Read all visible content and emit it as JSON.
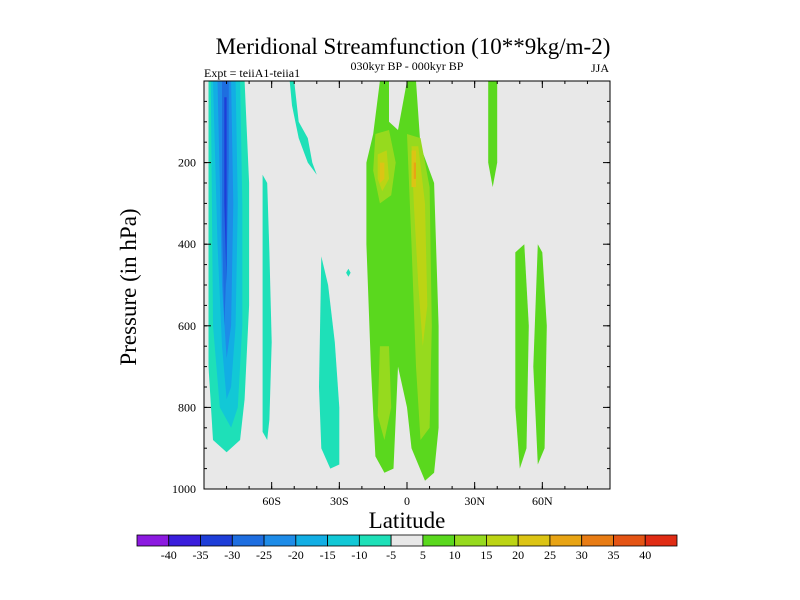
{
  "chart_data": {
    "type": "contour",
    "title": "Meridional Streamfunction (10**9kg/m-2)",
    "left_string": "Expt = teiiA1-teiia1",
    "center_string": "030kyr BP - 000kyr BP",
    "right_string": "JJA",
    "xlabel": "Latitude",
    "ylabel": "Pressure (in hPa)",
    "xlim": [
      -90,
      90
    ],
    "ylim": [
      1000,
      0
    ],
    "xticks": [
      {
        "value": -60,
        "label": "60S"
      },
      {
        "value": -30,
        "label": "30S"
      },
      {
        "value": 0,
        "label": "0"
      },
      {
        "value": 30,
        "label": "30N"
      },
      {
        "value": 60,
        "label": "60N"
      }
    ],
    "yticks": [
      {
        "value": 200,
        "label": "200"
      },
      {
        "value": 400,
        "label": "400"
      },
      {
        "value": 600,
        "label": "600"
      },
      {
        "value": 800,
        "label": "800"
      },
      {
        "value": 1000,
        "label": "1000"
      }
    ],
    "background_color": "#e8e8e8",
    "levels": [
      {
        "value": -40,
        "label": "-40",
        "color": "#8c1ae0"
      },
      {
        "value": -35,
        "label": "-35",
        "color": "#3a1edc"
      },
      {
        "value": -30,
        "label": "-30",
        "color": "#1e3ed8"
      },
      {
        "value": -25,
        "label": "-25",
        "color": "#1e6ee0"
      },
      {
        "value": -20,
        "label": "-20",
        "color": "#1e8ce8"
      },
      {
        "value": -15,
        "label": "-15",
        "color": "#12aee4"
      },
      {
        "value": -10,
        "label": "-10",
        "color": "#12c8d6"
      },
      {
        "value": -5,
        "label": "-5",
        "color": "#1ee0b8"
      },
      {
        "value": 5,
        "label": "5",
        "color": "#e8e8e8"
      },
      {
        "value": 10,
        "label": "10",
        "color": "#5ad81e"
      },
      {
        "value": 15,
        "label": "15",
        "color": "#96da1e"
      },
      {
        "value": 20,
        "label": "20",
        "color": "#bcd414"
      },
      {
        "value": 25,
        "label": "25",
        "color": "#dcc414"
      },
      {
        "value": 30,
        "label": "30",
        "color": "#e8a414"
      },
      {
        "value": 35,
        "label": "35",
        "color": "#e87c14"
      },
      {
        "value": 40,
        "label": "40",
        "color": "#e45414"
      },
      {
        "value": null,
        "label": "",
        "color": "#e02c14"
      }
    ],
    "regions": [
      {
        "name": "sh-neg-10",
        "color": "#1ee0b8",
        "points": [
          [
            -88,
            0
          ],
          [
            -72,
            0
          ],
          [
            -70,
            250
          ],
          [
            -70,
            550
          ],
          [
            -72,
            780
          ],
          [
            -74,
            880
          ],
          [
            -80,
            910
          ],
          [
            -86,
            880
          ],
          [
            -88,
            700
          ]
        ]
      },
      {
        "name": "sh-neg-15",
        "color": "#12c8d6",
        "points": [
          [
            -87,
            0
          ],
          [
            -74,
            0
          ],
          [
            -73,
            300
          ],
          [
            -73,
            600
          ],
          [
            -75,
            800
          ],
          [
            -78,
            850
          ],
          [
            -83,
            800
          ],
          [
            -86,
            600
          ]
        ]
      },
      {
        "name": "sh-neg-20",
        "color": "#12aee4",
        "points": [
          [
            -86,
            0
          ],
          [
            -76,
            0
          ],
          [
            -75,
            300
          ],
          [
            -76,
            600
          ],
          [
            -78,
            750
          ],
          [
            -80,
            780
          ],
          [
            -82,
            650
          ],
          [
            -84,
            400
          ]
        ]
      },
      {
        "name": "sh-neg-25",
        "color": "#1e8ce8",
        "points": [
          [
            -84,
            0
          ],
          [
            -78,
            0
          ],
          [
            -77,
            300
          ],
          [
            -78,
            600
          ],
          [
            -80,
            680
          ],
          [
            -82,
            500
          ],
          [
            -83,
            250
          ]
        ]
      },
      {
        "name": "sh-neg-30",
        "color": "#1e6ee0",
        "points": [
          [
            -82,
            0
          ],
          [
            -79,
            0
          ],
          [
            -79,
            200
          ],
          [
            -80,
            450
          ],
          [
            -81,
            600
          ],
          [
            -82,
            350
          ]
        ]
      },
      {
        "name": "sh-neg-35",
        "color": "#1e3ed8",
        "points": [
          [
            -81,
            40
          ],
          [
            -80,
            40
          ],
          [
            -80,
            300
          ],
          [
            -80,
            500
          ],
          [
            -81,
            300
          ]
        ]
      },
      {
        "name": "upper-blob-a",
        "color": "#1ee0b8",
        "points": [
          [
            -52,
            0
          ],
          [
            -50,
            0
          ],
          [
            -48,
            100
          ],
          [
            -44,
            140
          ],
          [
            -42,
            200
          ],
          [
            -40,
            230
          ],
          [
            -44,
            200
          ],
          [
            -48,
            140
          ],
          [
            -51,
            60
          ]
        ]
      },
      {
        "name": "mid-tongue-60s",
        "color": "#1ee0b8",
        "points": [
          [
            -64,
            230
          ],
          [
            -62,
            250
          ],
          [
            -61,
            420
          ],
          [
            -60,
            640
          ],
          [
            -61,
            830
          ],
          [
            -62,
            880
          ],
          [
            -64,
            860
          ],
          [
            -64,
            500
          ]
        ]
      },
      {
        "name": "mid-tongue-40s",
        "color": "#1ee0b8",
        "points": [
          [
            -38,
            430
          ],
          [
            -35,
            500
          ],
          [
            -32,
            640
          ],
          [
            -30,
            800
          ],
          [
            -30,
            940
          ],
          [
            -34,
            950
          ],
          [
            -38,
            900
          ],
          [
            -39,
            750
          ]
        ]
      },
      {
        "name": "thin-tongue-tropics",
        "color": "#1ee0b8",
        "points": [
          [
            -8,
            430
          ],
          [
            -7,
            470
          ],
          [
            -6,
            530
          ],
          [
            -5,
            680
          ],
          [
            -6,
            700
          ],
          [
            -8,
            560
          ]
        ]
      },
      {
        "name": "tiny-dot",
        "color": "#1ee0b8",
        "points": [
          [
            -26,
            460
          ],
          [
            -25,
            470
          ],
          [
            -26,
            480
          ],
          [
            -27,
            470
          ]
        ]
      },
      {
        "name": "pos-green-main",
        "color": "#5ad81e",
        "points": [
          [
            -12,
            0
          ],
          [
            -8,
            0
          ],
          [
            -8,
            100
          ],
          [
            -4,
            120
          ],
          [
            0,
            0
          ],
          [
            4,
            0
          ],
          [
            6,
            160
          ],
          [
            12,
            250
          ],
          [
            14,
            600
          ],
          [
            14,
            850
          ],
          [
            12,
            960
          ],
          [
            8,
            980
          ],
          [
            2,
            900
          ],
          [
            0,
            800
          ],
          [
            -4,
            700
          ],
          [
            -6,
            950
          ],
          [
            -10,
            960
          ],
          [
            -14,
            920
          ],
          [
            -16,
            700
          ],
          [
            -18,
            400
          ],
          [
            -18,
            200
          ],
          [
            -15,
            130
          ]
        ]
      },
      {
        "name": "pos-green-right-a",
        "color": "#5ad81e",
        "points": [
          [
            36,
            0
          ],
          [
            40,
            0
          ],
          [
            40,
            200
          ],
          [
            38,
            260
          ],
          [
            36,
            200
          ]
        ]
      },
      {
        "name": "pos-green-right-b",
        "color": "#5ad81e",
        "points": [
          [
            48,
            420
          ],
          [
            52,
            400
          ],
          [
            54,
            600
          ],
          [
            53,
            900
          ],
          [
            50,
            950
          ],
          [
            48,
            800
          ]
        ]
      },
      {
        "name": "pos-green-right-c",
        "color": "#5ad81e",
        "points": [
          [
            58,
            400
          ],
          [
            60,
            420
          ],
          [
            62,
            600
          ],
          [
            61,
            900
          ],
          [
            58,
            940
          ],
          [
            56,
            700
          ]
        ]
      },
      {
        "name": "pos-15",
        "color": "#96da1e",
        "points": [
          [
            -14,
            130
          ],
          [
            -8,
            120
          ],
          [
            -5,
            200
          ],
          [
            -7,
            280
          ],
          [
            -12,
            300
          ],
          [
            -15,
            220
          ]
        ]
      },
      {
        "name": "pos-15-b",
        "color": "#96da1e",
        "points": [
          [
            0,
            130
          ],
          [
            6,
            140
          ],
          [
            10,
            260
          ],
          [
            11,
            600
          ],
          [
            10,
            850
          ],
          [
            6,
            880
          ],
          [
            4,
            700
          ],
          [
            2,
            400
          ]
        ]
      },
      {
        "name": "pos-15-c",
        "color": "#96da1e",
        "points": [
          [
            -12,
            650
          ],
          [
            -8,
            650
          ],
          [
            -7,
            800
          ],
          [
            -10,
            880
          ],
          [
            -13,
            820
          ]
        ]
      },
      {
        "name": "pos-20",
        "color": "#bcd414",
        "points": [
          [
            -13,
            180
          ],
          [
            -9,
            170
          ],
          [
            -8,
            240
          ],
          [
            -11,
            270
          ],
          [
            -13,
            240
          ]
        ]
      },
      {
        "name": "pos-20-b",
        "color": "#bcd414",
        "points": [
          [
            2,
            160
          ],
          [
            5,
            160
          ],
          [
            8,
            300
          ],
          [
            9,
            550
          ],
          [
            7,
            650
          ],
          [
            5,
            500
          ],
          [
            3,
            300
          ]
        ]
      },
      {
        "name": "pos-25",
        "color": "#dcc414",
        "points": [
          [
            -12,
            200
          ],
          [
            -10,
            200
          ],
          [
            -10,
            240
          ],
          [
            -12,
            250
          ]
        ]
      },
      {
        "name": "pos-25-b",
        "color": "#dcc414",
        "points": [
          [
            2,
            170
          ],
          [
            4,
            170
          ],
          [
            4,
            260
          ],
          [
            2,
            260
          ]
        ]
      },
      {
        "name": "pos-30",
        "color": "#e8a414",
        "points": [
          [
            3,
            200
          ],
          [
            4,
            200
          ],
          [
            4,
            240
          ],
          [
            3,
            240
          ]
        ]
      }
    ]
  }
}
